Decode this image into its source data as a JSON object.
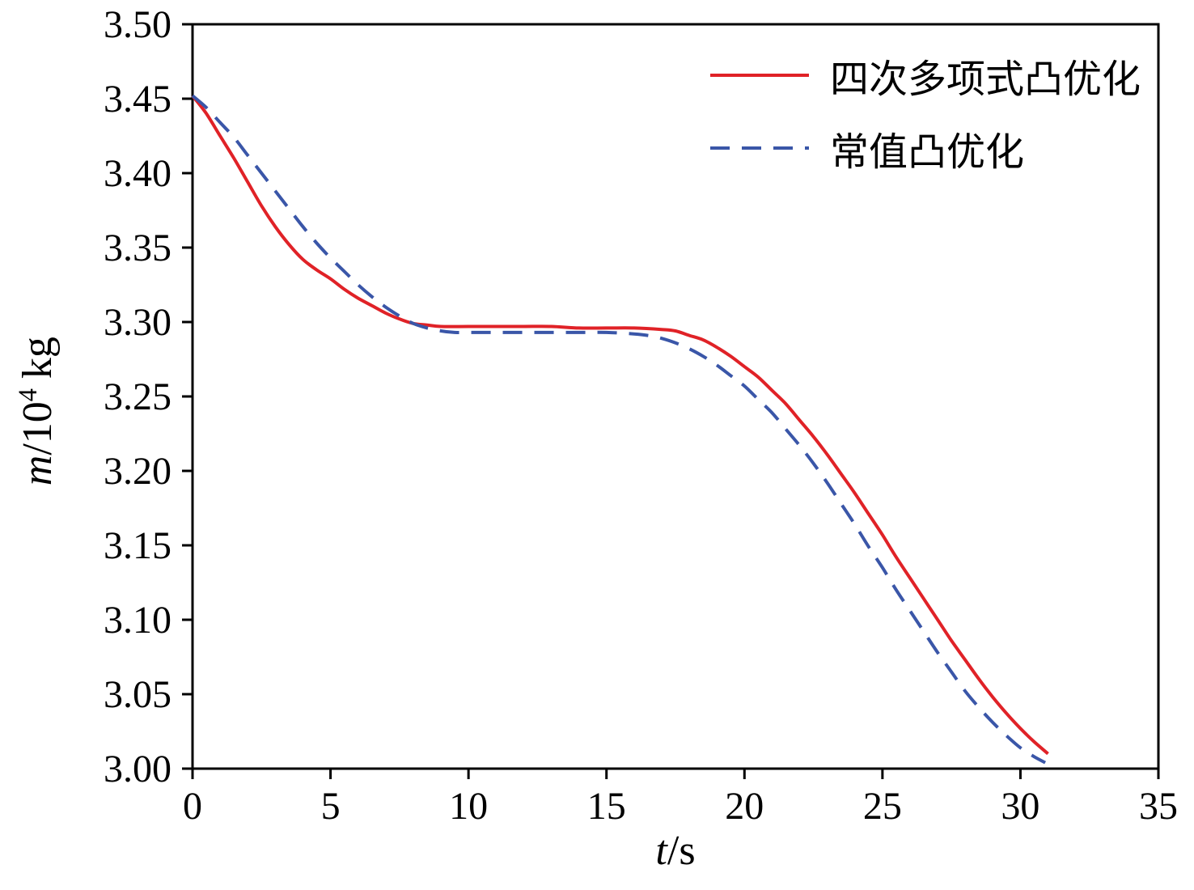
{
  "chart_data": {
    "type": "line",
    "title": "",
    "xlabel": "t/s",
    "ylabel": "m/10⁴ kg",
    "xlabel_parts": {
      "it": "t",
      "rest": "/s"
    },
    "ylabel_parts": {
      "it": "m",
      "mid": "/10",
      "sup": "4",
      "rest": "kg"
    },
    "xlim": [
      0,
      35
    ],
    "ylim": [
      3.0,
      3.5
    ],
    "grid": false,
    "legend_position": "upper right",
    "frame_color": "#000000",
    "xtick_values": [
      0,
      5,
      10,
      15,
      20,
      25,
      30,
      35
    ],
    "xtick_labels": [
      "0",
      "5",
      "10",
      "15",
      "20",
      "25",
      "30",
      "35"
    ],
    "ytick_values": [
      3.0,
      3.05,
      3.1,
      3.15,
      3.2,
      3.25,
      3.3,
      3.35,
      3.4,
      3.45,
      3.5
    ],
    "ytick_labels": [
      "3.00",
      "3.05",
      "3.10",
      "3.15",
      "3.20",
      "3.25",
      "3.30",
      "3.35",
      "3.40",
      "3.45",
      "3.50"
    ],
    "series": [
      {
        "name": "四次多项式凸优化",
        "color": "#e02227",
        "style": "solid",
        "dash": "",
        "points": [
          [
            0,
            3.452
          ],
          [
            0.5,
            3.44
          ],
          [
            1,
            3.425
          ],
          [
            1.5,
            3.41
          ],
          [
            2,
            3.394
          ],
          [
            2.5,
            3.378
          ],
          [
            3,
            3.364
          ],
          [
            3.5,
            3.352
          ],
          [
            4,
            3.342
          ],
          [
            4.5,
            3.335
          ],
          [
            5,
            3.329
          ],
          [
            5.5,
            3.322
          ],
          [
            6,
            3.316
          ],
          [
            6.5,
            3.311
          ],
          [
            7,
            3.306
          ],
          [
            7.5,
            3.302
          ],
          [
            8,
            3.299
          ],
          [
            8.5,
            3.298
          ],
          [
            9,
            3.297
          ],
          [
            10,
            3.297
          ],
          [
            11,
            3.297
          ],
          [
            12,
            3.297
          ],
          [
            13,
            3.297
          ],
          [
            14,
            3.296
          ],
          [
            15,
            3.296
          ],
          [
            16,
            3.296
          ],
          [
            17,
            3.295
          ],
          [
            17.5,
            3.294
          ],
          [
            18,
            3.291
          ],
          [
            18.5,
            3.288
          ],
          [
            19,
            3.283
          ],
          [
            19.5,
            3.277
          ],
          [
            20,
            3.27
          ],
          [
            20.5,
            3.263
          ],
          [
            21,
            3.254
          ],
          [
            21.5,
            3.245
          ],
          [
            22,
            3.234
          ],
          [
            22.5,
            3.223
          ],
          [
            23,
            3.211
          ],
          [
            23.5,
            3.198
          ],
          [
            24,
            3.185
          ],
          [
            24.5,
            3.171
          ],
          [
            25,
            3.157
          ],
          [
            25.5,
            3.142
          ],
          [
            26,
            3.128
          ],
          [
            26.5,
            3.114
          ],
          [
            27,
            3.1
          ],
          [
            27.5,
            3.086
          ],
          [
            28,
            3.073
          ],
          [
            28.5,
            3.06
          ],
          [
            29,
            3.048
          ],
          [
            29.5,
            3.037
          ],
          [
            30,
            3.027
          ],
          [
            30.5,
            3.018
          ],
          [
            31,
            3.01
          ]
        ]
      },
      {
        "name": "常值凸优化",
        "color": "#3a56a8",
        "style": "dashed",
        "dash": "24 15",
        "points": [
          [
            0,
            3.452
          ],
          [
            0.5,
            3.444
          ],
          [
            1,
            3.434
          ],
          [
            1.5,
            3.424
          ],
          [
            2,
            3.412
          ],
          [
            2.5,
            3.4
          ],
          [
            3,
            3.388
          ],
          [
            3.5,
            3.376
          ],
          [
            4,
            3.364
          ],
          [
            4.5,
            3.353
          ],
          [
            5,
            3.343
          ],
          [
            5.5,
            3.334
          ],
          [
            6,
            3.325
          ],
          [
            6.5,
            3.317
          ],
          [
            7,
            3.31
          ],
          [
            7.5,
            3.304
          ],
          [
            8,
            3.299
          ],
          [
            8.5,
            3.296
          ],
          [
            9,
            3.294
          ],
          [
            9.5,
            3.293
          ],
          [
            10,
            3.293
          ],
          [
            11,
            3.293
          ],
          [
            12,
            3.293
          ],
          [
            13,
            3.293
          ],
          [
            14,
            3.293
          ],
          [
            15,
            3.293
          ],
          [
            16,
            3.292
          ],
          [
            16.5,
            3.291
          ],
          [
            17,
            3.289
          ],
          [
            17.5,
            3.286
          ],
          [
            18,
            3.282
          ],
          [
            18.5,
            3.277
          ],
          [
            19,
            3.271
          ],
          [
            19.5,
            3.264
          ],
          [
            20,
            3.257
          ],
          [
            20.5,
            3.248
          ],
          [
            21,
            3.239
          ],
          [
            21.5,
            3.228
          ],
          [
            22,
            3.217
          ],
          [
            22.5,
            3.205
          ],
          [
            23,
            3.192
          ],
          [
            23.5,
            3.178
          ],
          [
            24,
            3.164
          ],
          [
            24.5,
            3.149
          ],
          [
            25,
            3.135
          ],
          [
            25.5,
            3.12
          ],
          [
            26,
            3.106
          ],
          [
            26.5,
            3.092
          ],
          [
            27,
            3.078
          ],
          [
            27.5,
            3.065
          ],
          [
            28,
            3.052
          ],
          [
            28.5,
            3.041
          ],
          [
            29,
            3.031
          ],
          [
            29.5,
            3.022
          ],
          [
            30,
            3.014
          ],
          [
            30.5,
            3.008
          ],
          [
            30.9,
            3.004
          ]
        ]
      }
    ]
  }
}
